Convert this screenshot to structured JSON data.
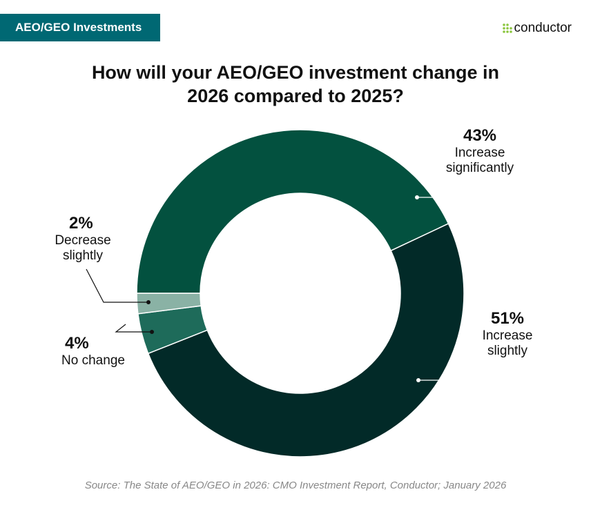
{
  "header": {
    "badge": "AEO/GEO Investments",
    "logo_text": "conductor"
  },
  "chart_data": {
    "type": "pie",
    "donut": true,
    "title": "How will your AEO/GEO investment change in 2026 compared to 2025?",
    "categories": [
      "Increase significantly",
      "Increase slightly",
      "No change",
      "Decrease slightly"
    ],
    "values": [
      43,
      51,
      4,
      2
    ],
    "labels": [
      "43%",
      "51%",
      "4%",
      "2%"
    ],
    "colors": [
      "#03513f",
      "#022a28",
      "#1e6b5a",
      "#8ab2a5"
    ]
  },
  "source": "Source: The State of AEO/GEO in 2026: CMO Investment Report, Conductor; January 2026"
}
